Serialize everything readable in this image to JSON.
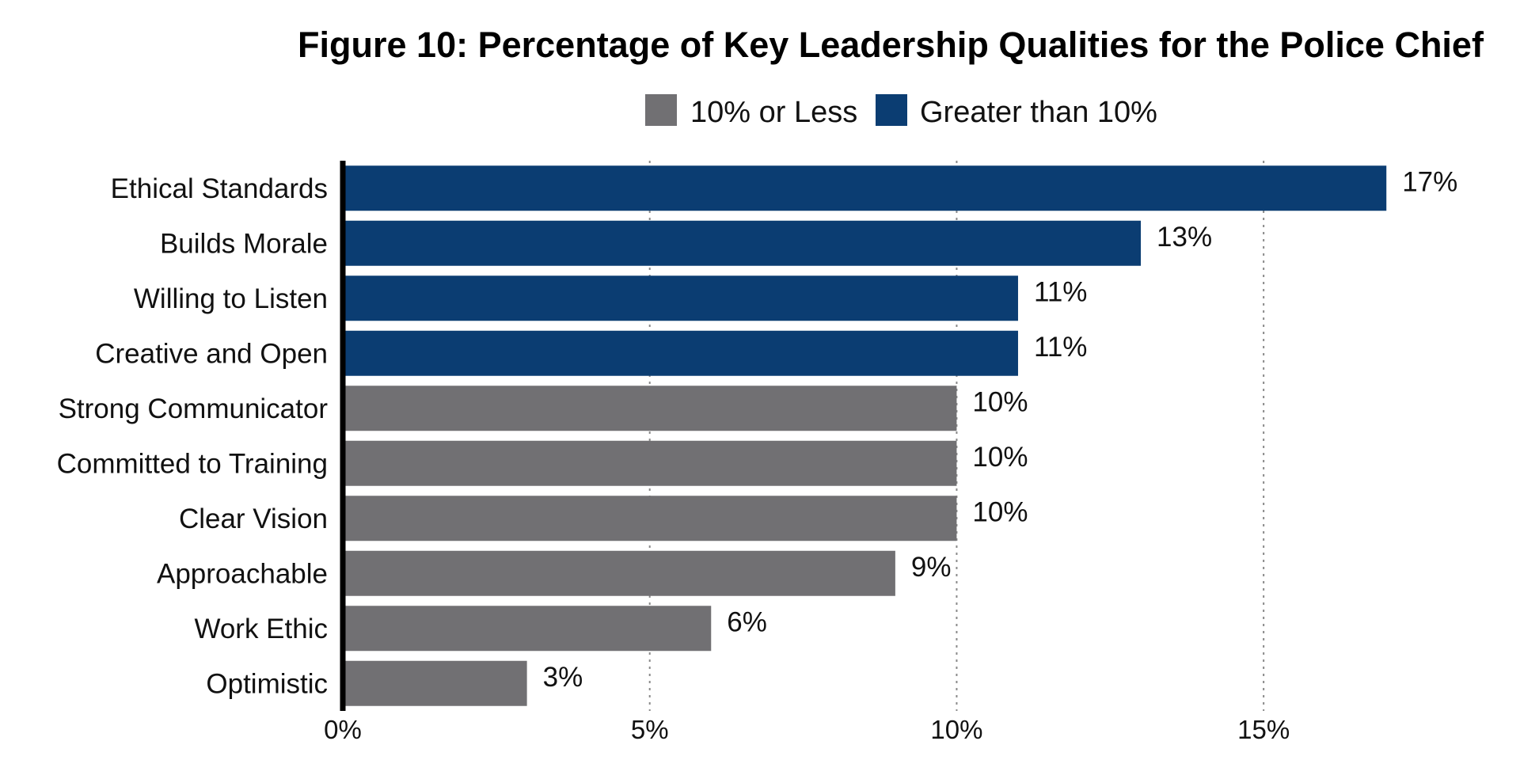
{
  "chart_data": {
    "type": "bar",
    "orientation": "horizontal",
    "title": "Figure 10: Percentage of Key Leadership Qualities for the Police Chief",
    "xlabel": "",
    "ylabel": "",
    "xlim": [
      0,
      17.5
    ],
    "x_ticks": [
      0,
      5,
      10,
      15
    ],
    "x_tick_labels": [
      "0%",
      "5%",
      "10%",
      "15%"
    ],
    "grid": "vertical dotted",
    "legend_position": "top",
    "legend": [
      {
        "name": "10% or Less",
        "color": "#717073"
      },
      {
        "name": "Greater than 10%",
        "color": "#0b3d72"
      }
    ],
    "categories": [
      "Ethical Standards",
      "Builds Morale",
      "Willing to Listen",
      "Creative and Open",
      "Strong Communicator",
      "Committed to Training",
      "Clear Vision",
      "Approachable",
      "Work Ethic",
      "Optimistic"
    ],
    "values": [
      17,
      13,
      11,
      11,
      10,
      10,
      10,
      9,
      6,
      3
    ],
    "value_labels": [
      "17%",
      "13%",
      "11%",
      "11%",
      "10%",
      "10%",
      "10%",
      "9%",
      "6%",
      "3%"
    ],
    "bar_groups": [
      1,
      1,
      1,
      1,
      0,
      0,
      0,
      0,
      0,
      0
    ],
    "colors": {
      "low": "#717073",
      "high": "#0b3d72",
      "axis": "#000000",
      "grid": "#8a8a8a"
    }
  }
}
